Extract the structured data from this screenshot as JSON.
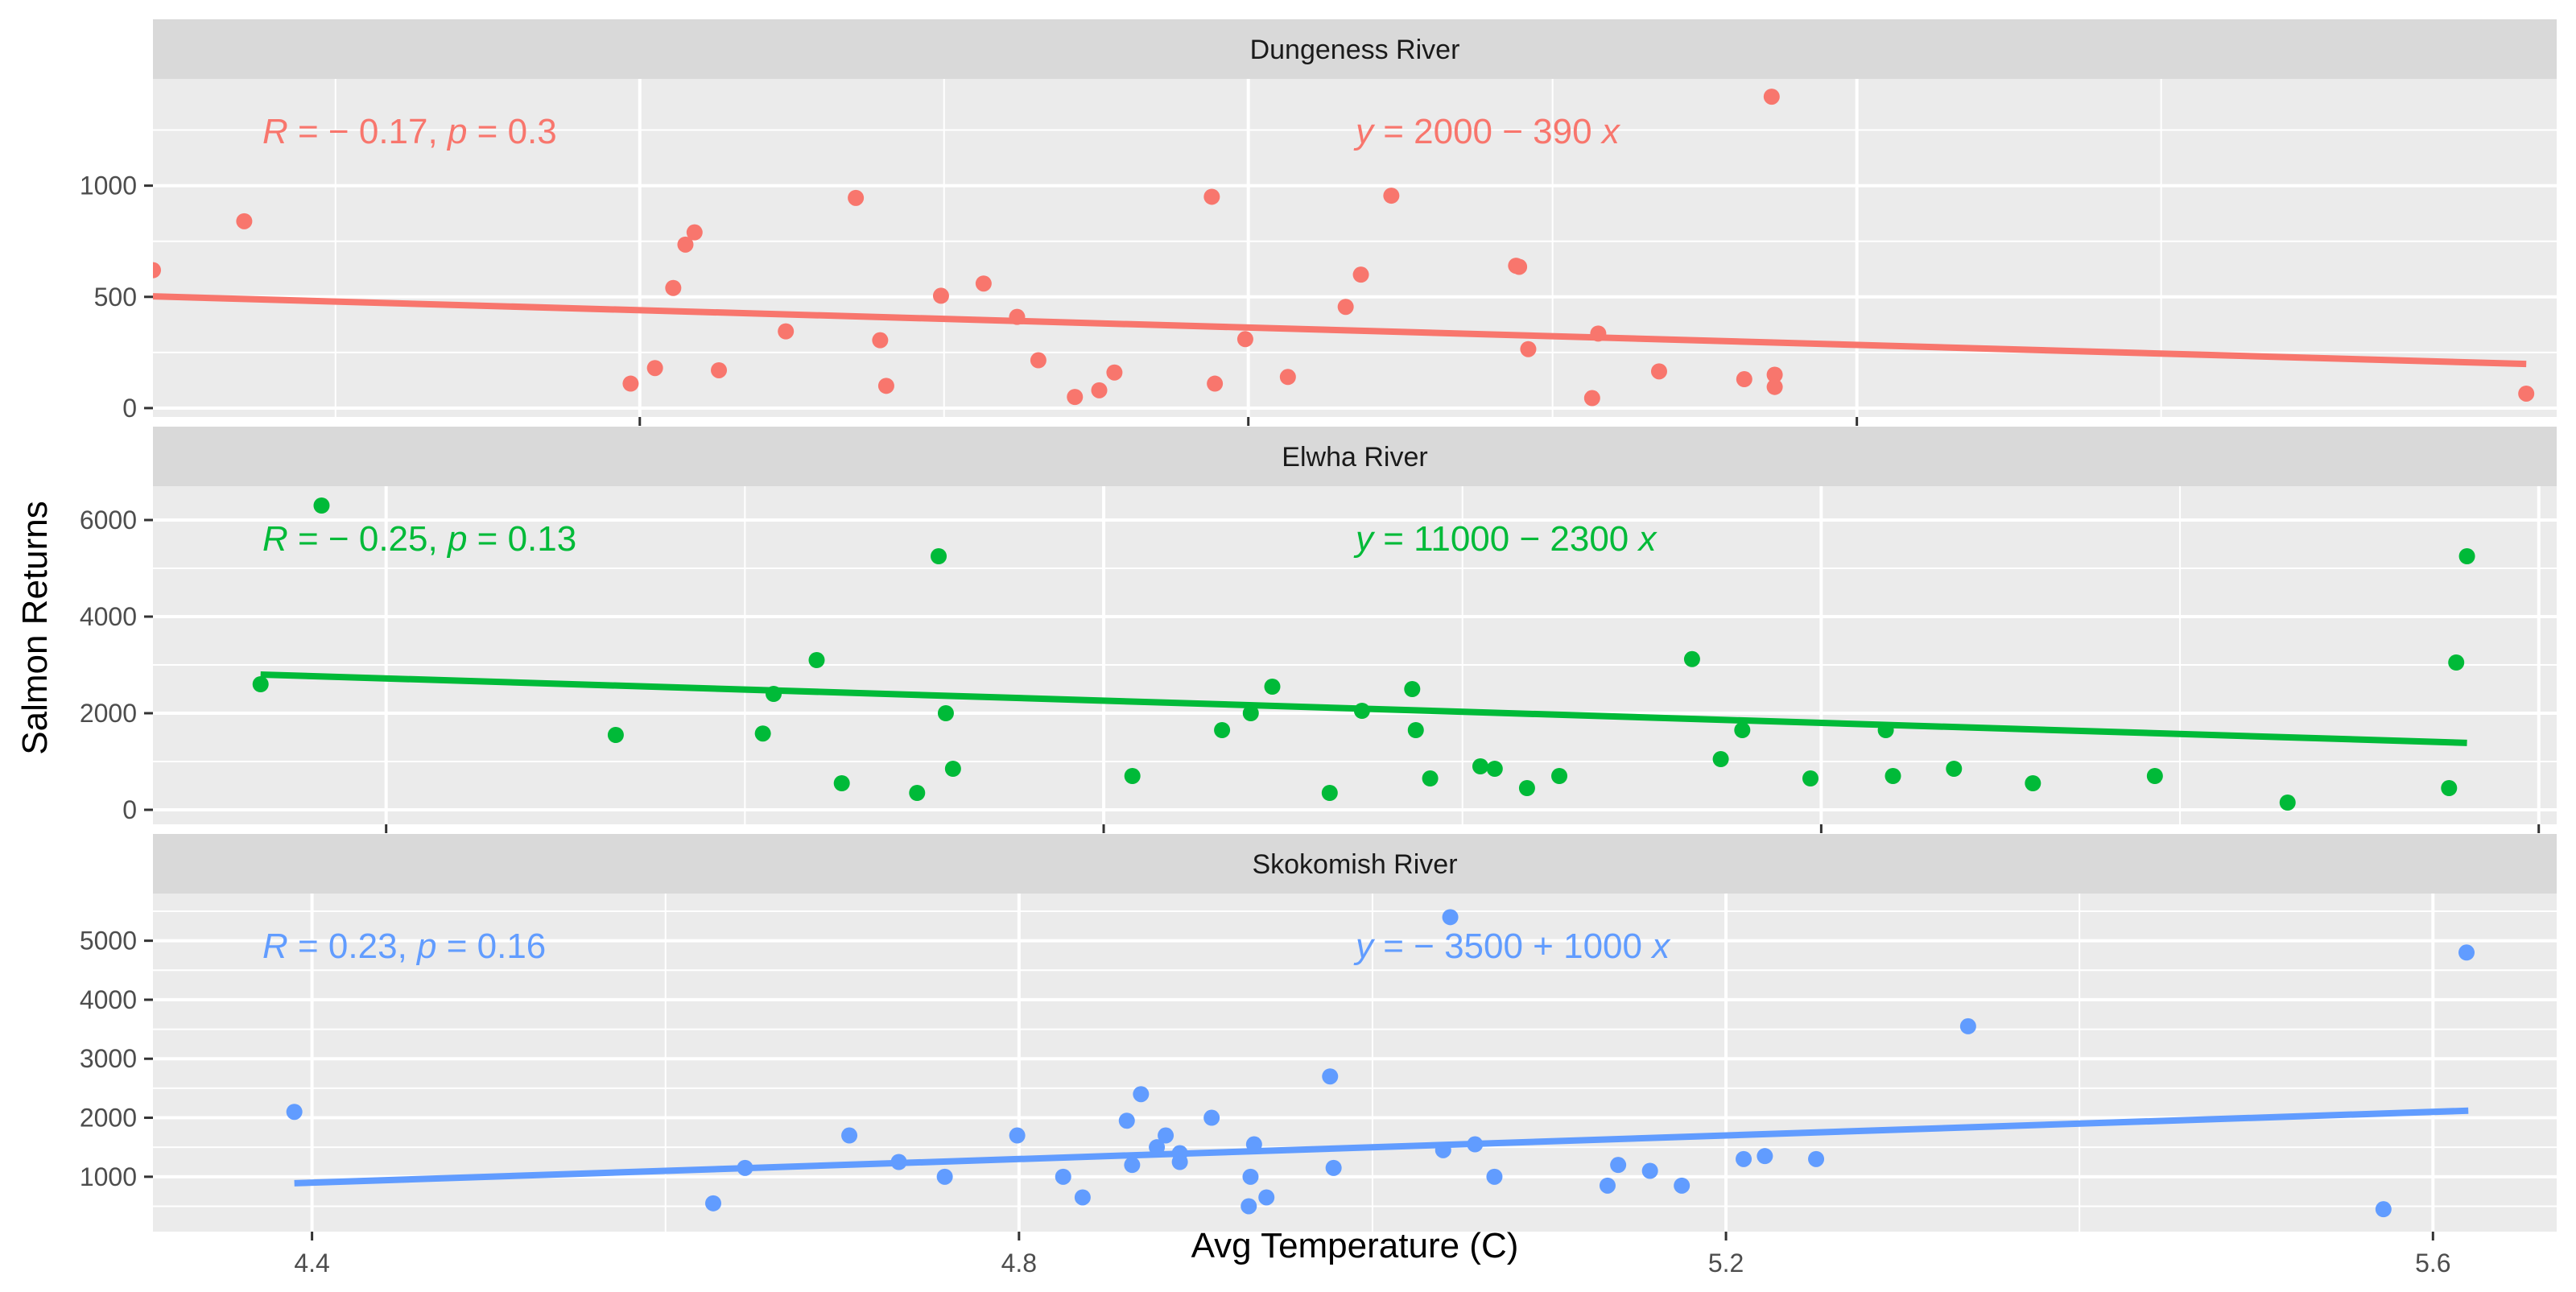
{
  "figure": {
    "xlabel": "Avg Temperature (C)",
    "ylabel": "Salmon Returns"
  },
  "chart_data": [
    {
      "type": "scatter",
      "title": "Dungeness River",
      "color": "#F8766D",
      "xlim": [
        3.84,
        4.63
      ],
      "ylim": [
        -40,
        1480
      ],
      "xticks": [
        4.0,
        4.2,
        4.4
      ],
      "yticks": [
        0,
        500,
        1000
      ],
      "stat_label": "R = − 0.17, p = 0.3",
      "eq_label": "y = 2000 − 390 x",
      "regression": {
        "intercept": 2000,
        "slope": -390,
        "x_range": [
          3.84,
          4.62
        ]
      },
      "x": [
        3.84,
        3.87,
        3.997,
        4.005,
        4.011,
        4.015,
        4.018,
        4.026,
        4.048,
        4.071,
        4.079,
        4.081,
        4.099,
        4.113,
        4.124,
        4.131,
        4.143,
        4.151,
        4.156,
        4.188,
        4.189,
        4.199,
        4.213,
        4.232,
        4.237,
        4.247,
        4.288,
        4.289,
        4.292,
        4.313,
        4.315,
        4.335,
        4.363,
        4.372,
        4.373,
        4.373,
        4.62
      ],
      "y": [
        620,
        840,
        110,
        180,
        540,
        735,
        790,
        170,
        345,
        945,
        305,
        100,
        505,
        560,
        410,
        215,
        50,
        80,
        160,
        950,
        110,
        310,
        140,
        455,
        600,
        955,
        640,
        635,
        265,
        45,
        335,
        165,
        130,
        1400,
        150,
        95,
        65
      ]
    },
    {
      "type": "scatter",
      "title": "Elwha River",
      "color": "#00BA38",
      "xlim": [
        3.535,
        4.205
      ],
      "ylim": [
        -300,
        6700
      ],
      "xticks": [
        3.6,
        3.8,
        4.0,
        4.2
      ],
      "yticks": [
        0,
        2000,
        4000,
        6000
      ],
      "stat_label": "R = − 0.25, p = 0.13",
      "eq_label": "y = 11000 − 2300 x",
      "regression": {
        "intercept": 11000,
        "slope": -2300,
        "x_range": [
          3.565,
          4.18
        ]
      },
      "x": [
        3.565,
        3.582,
        3.664,
        3.705,
        3.708,
        3.72,
        3.727,
        3.748,
        3.754,
        3.756,
        3.758,
        3.808,
        3.833,
        3.841,
        3.847,
        3.863,
        3.872,
        3.886,
        3.887,
        3.891,
        3.905,
        3.909,
        3.918,
        3.927,
        3.964,
        3.972,
        3.978,
        3.997,
        4.018,
        4.02,
        4.037,
        4.059,
        4.093,
        4.13,
        4.175,
        4.177,
        4.18
      ],
      "y": [
        2600,
        6300,
        1550,
        1580,
        2400,
        3100,
        550,
        350,
        5250,
        2000,
        850,
        700,
        1650,
        2000,
        2550,
        350,
        2050,
        2500,
        1650,
        650,
        900,
        850,
        450,
        700,
        3120,
        1050,
        1650,
        650,
        1650,
        700,
        850,
        550,
        700,
        150,
        450,
        3050,
        5250
      ]
    },
    {
      "type": "scatter",
      "title": "Skokomish River",
      "color": "#619CFF",
      "xlim": [
        4.31,
        5.67
      ],
      "ylim": [
        70,
        5800
      ],
      "xticks": [
        4.4,
        4.8,
        5.2,
        5.6
      ],
      "yticks": [
        1000,
        2000,
        3000,
        4000,
        5000
      ],
      "stat_label": "R = 0.23, p = 0.16",
      "eq_label": "y = − 3500 + 1000 x",
      "regression": {
        "intercept": -3500,
        "slope": 1000,
        "x_range": [
          4.39,
          5.62
        ]
      },
      "x": [
        4.39,
        4.627,
        4.645,
        4.704,
        4.732,
        4.758,
        4.799,
        4.825,
        4.836,
        4.861,
        4.864,
        4.869,
        4.878,
        4.883,
        4.891,
        4.891,
        4.909,
        4.93,
        4.931,
        4.933,
        4.94,
        4.976,
        4.978,
        5.04,
        5.044,
        5.058,
        5.069,
        5.133,
        5.139,
        5.157,
        5.175,
        5.21,
        5.222,
        5.251,
        5.337,
        5.572,
        5.619
      ],
      "y": [
        2100,
        550,
        1150,
        1700,
        1250,
        1000,
        1700,
        1000,
        650,
        1950,
        1200,
        2400,
        1500,
        1700,
        1400,
        1250,
        2000,
        500,
        1000,
        1550,
        650,
        2700,
        1150,
        1450,
        5400,
        1550,
        1000,
        850,
        1200,
        1100,
        850,
        1300,
        1350,
        1300,
        3550,
        450,
        4800
      ]
    }
  ]
}
